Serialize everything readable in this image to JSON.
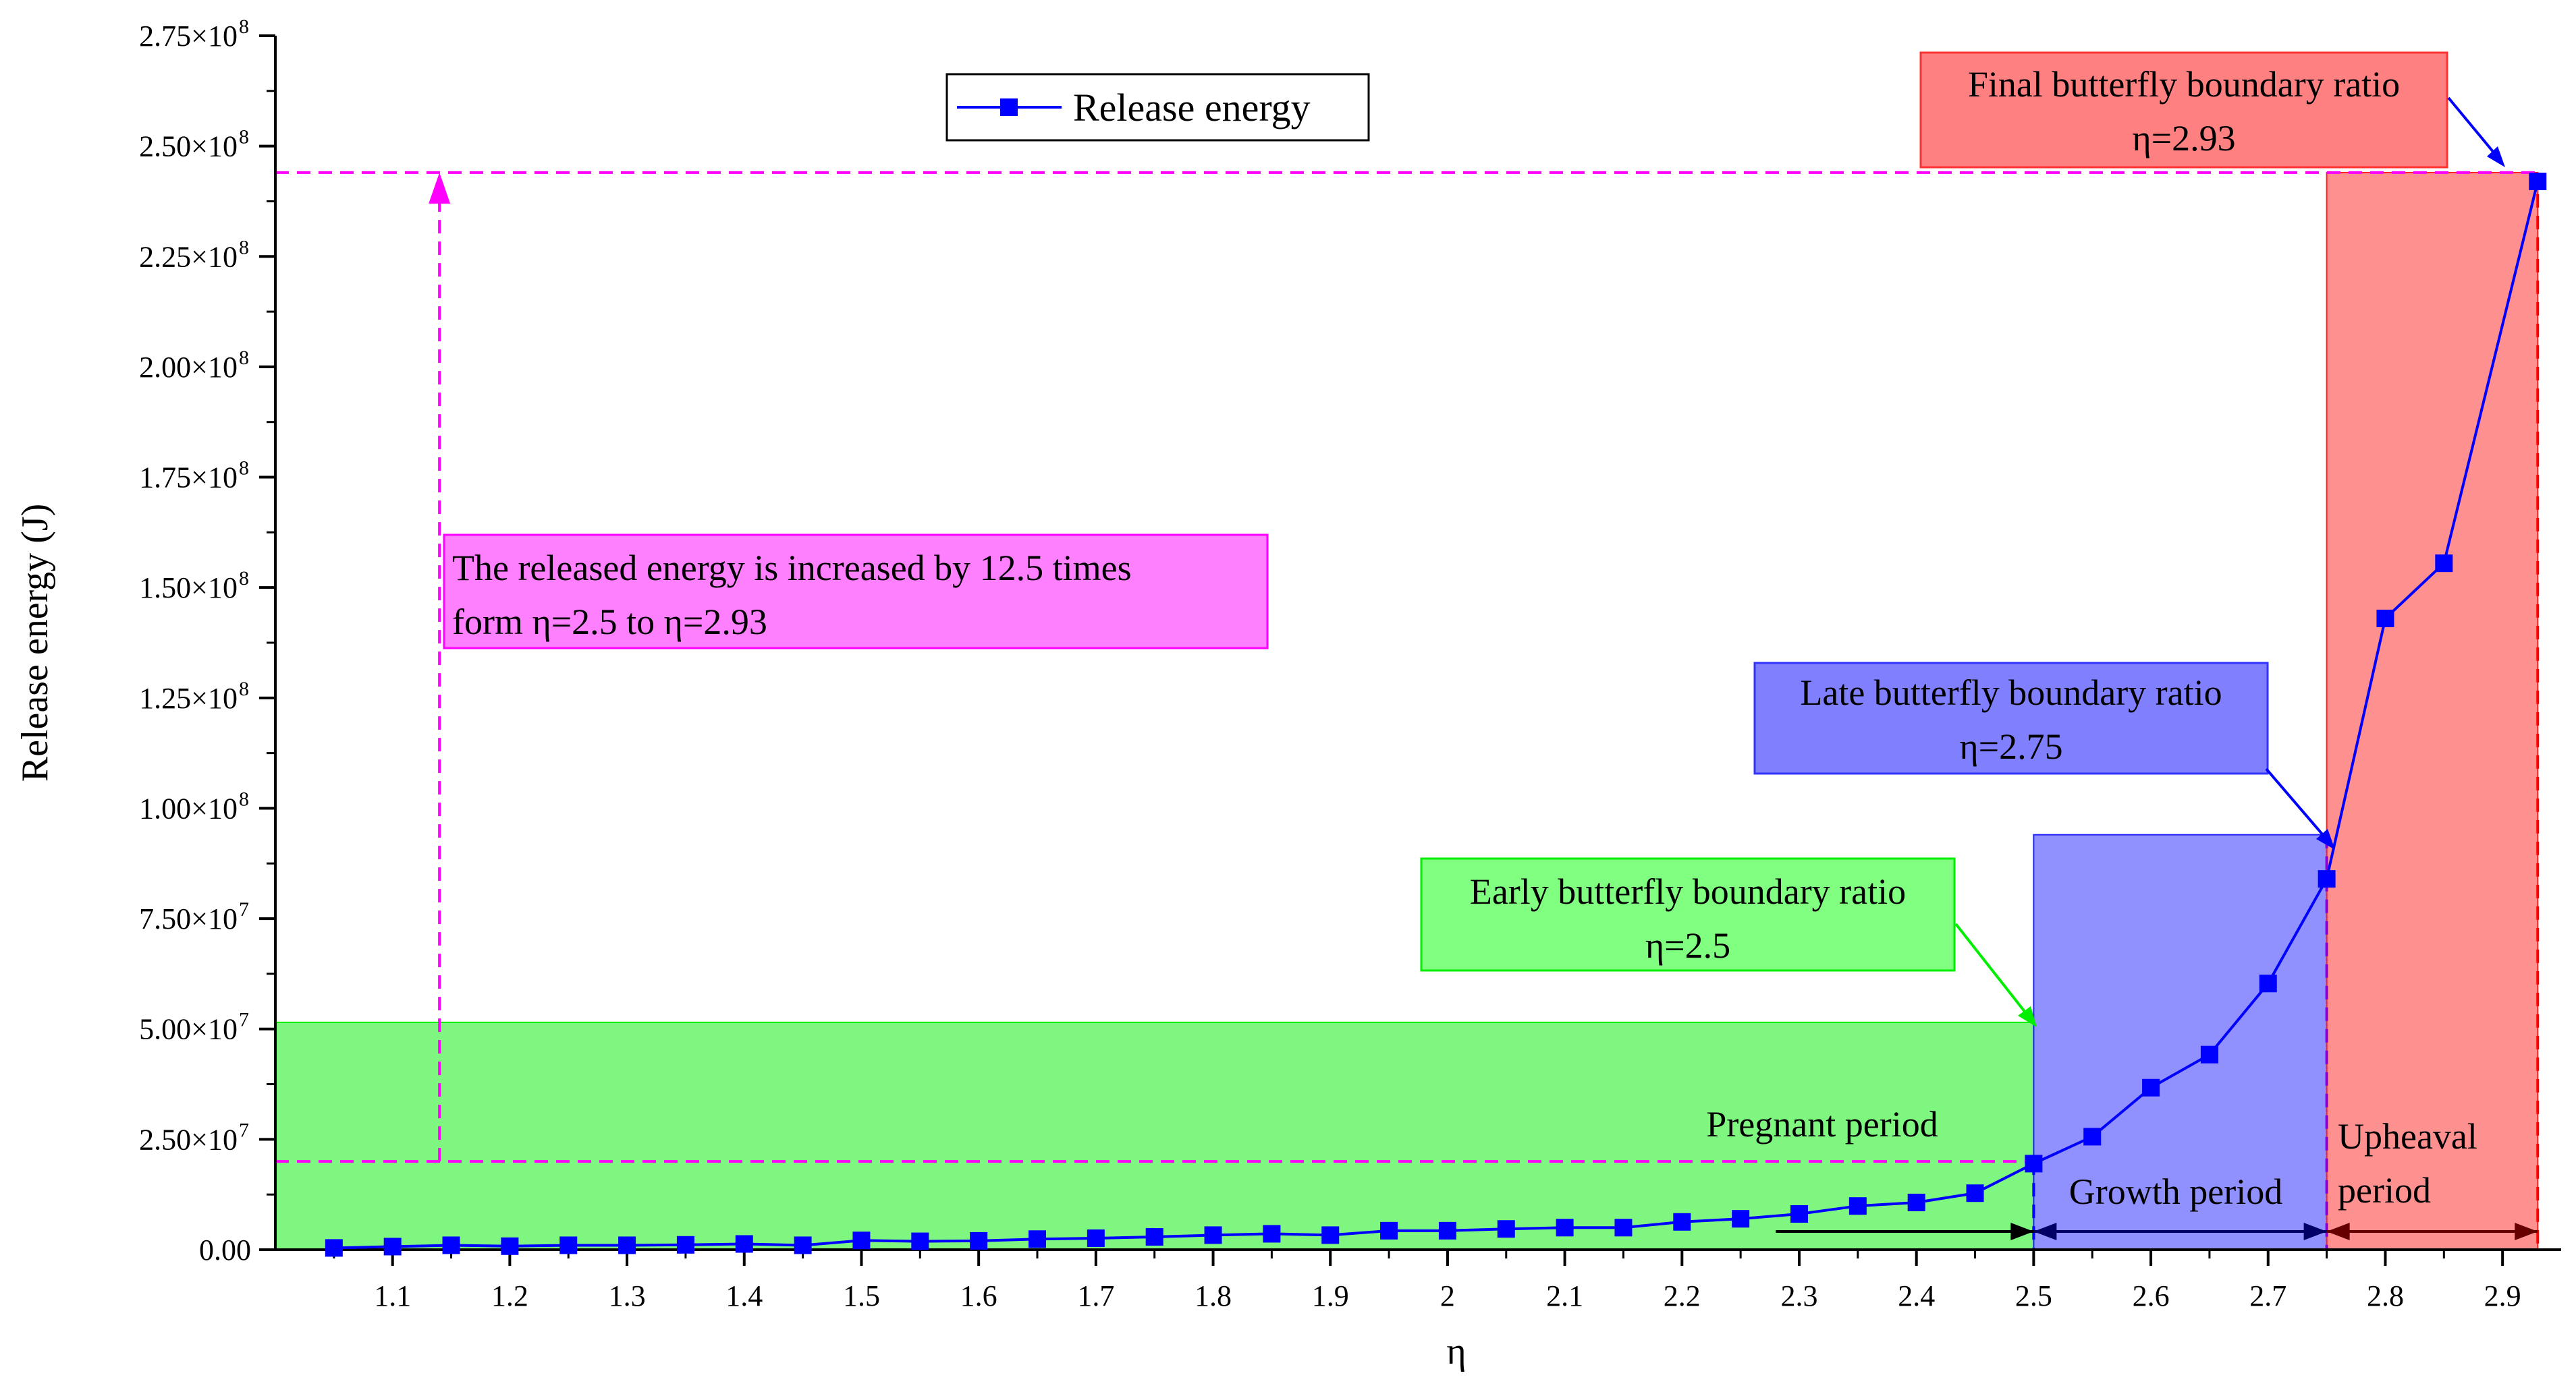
{
  "chart_data": {
    "type": "line",
    "xlabel": "η",
    "ylabel": "Release energy (J)",
    "xlim": [
      1.0,
      2.95
    ],
    "ylim": [
      0,
      275000000
    ],
    "x_ticks": [
      1.1,
      1.2,
      1.3,
      1.4,
      1.5,
      1.6,
      1.7,
      1.8,
      1.9,
      2,
      2.1,
      2.2,
      2.3,
      2.4,
      2.5,
      2.6,
      2.7,
      2.8,
      2.9
    ],
    "x_tick_labels": [
      "1.1",
      "1.2",
      "1.3",
      "1.4",
      "1.5",
      "1.6",
      "1.7",
      "1.8",
      "1.9",
      "2",
      "2.1",
      "2.2",
      "2.3",
      "2.4",
      "2.5",
      "2.6",
      "2.7",
      "2.8",
      "2.9"
    ],
    "y_ticks": [
      0,
      25000000,
      50000000,
      75000000,
      100000000,
      125000000,
      150000000,
      175000000,
      200000000,
      225000000,
      250000000,
      275000000
    ],
    "y_tick_labels": [
      {
        "mantissa": "0.00",
        "exp": ""
      },
      {
        "mantissa": "2.50×10",
        "exp": "7"
      },
      {
        "mantissa": "5.00×10",
        "exp": "7"
      },
      {
        "mantissa": "7.50×10",
        "exp": "7"
      },
      {
        "mantissa": "1.00×10",
        "exp": "8"
      },
      {
        "mantissa": "1.25×10",
        "exp": "8"
      },
      {
        "mantissa": "1.50×10",
        "exp": "8"
      },
      {
        "mantissa": "1.75×10",
        "exp": "8"
      },
      {
        "mantissa": "2.00×10",
        "exp": "8"
      },
      {
        "mantissa": "2.25×10",
        "exp": "8"
      },
      {
        "mantissa": "2.50×10",
        "exp": "8"
      },
      {
        "mantissa": "2.75×10",
        "exp": "8"
      }
    ],
    "series": [
      {
        "name": "Release energy",
        "color": "#0000ff",
        "marker": "square",
        "x": [
          1.05,
          1.1,
          1.15,
          1.2,
          1.25,
          1.3,
          1.35,
          1.4,
          1.45,
          1.5,
          1.55,
          1.6,
          1.65,
          1.7,
          1.75,
          1.8,
          1.85,
          1.9,
          1.95,
          2.0,
          2.05,
          2.1,
          2.15,
          2.2,
          2.25,
          2.3,
          2.35,
          2.4,
          2.45,
          2.5,
          2.55,
          2.6,
          2.65,
          2.7,
          2.75,
          2.8,
          2.85,
          2.93
        ],
        "y": [
          400000,
          700000,
          1000000,
          800000,
          1000000,
          1000000,
          1100000,
          1300000,
          1000000,
          2100000,
          1900000,
          2000000,
          2400000,
          2600000,
          2900000,
          3300000,
          3600000,
          3300000,
          4300000,
          4300000,
          4700000,
          5000000,
          5000000,
          6300000,
          7000000,
          8100000,
          9900000,
          10700000,
          12800000,
          19500000,
          25600000,
          36700000,
          44200000,
          60300000,
          84000000,
          143000000,
          155500000,
          242000000
        ]
      }
    ],
    "legend": {
      "label": "Release energy",
      "position": "top-center"
    },
    "regions": [
      {
        "name": "pregnant",
        "label": "Pregnant period",
        "x_start": 1.0,
        "x_end": 2.5,
        "y_top": 51500000,
        "color": "#00ee00"
      },
      {
        "name": "growth",
        "label": "Growth period",
        "x_start": 2.5,
        "x_end": 2.75,
        "y_top": 94000000,
        "color": "#2222ff"
      },
      {
        "name": "upheaval",
        "label_line1": "Upheaval",
        "label_line2": "period",
        "x_start": 2.75,
        "x_end": 2.93,
        "y_top": 244000000,
        "color": "#ff2222"
      }
    ],
    "annotations": {
      "early": {
        "line1": "Early butterfly boundary ratio",
        "line2": "η=2.5",
        "color": "#00ee00",
        "arrow_color": "#00ee00"
      },
      "late": {
        "line1": "Late butterfly boundary ratio",
        "line2": "η=2.75",
        "color": "#3333ff",
        "arrow_color": "#0000ff"
      },
      "final": {
        "line1": "Final butterfly boundary ratio",
        "line2": "η=2.93",
        "color": "#ff3333",
        "arrow_color": "#0000ff"
      },
      "released": {
        "line1": "The released energy is increased by 12.5 times",
        "line2": "form η=2.5 to η=2.93",
        "color": "#ff44ff"
      }
    },
    "reference_lines": {
      "low_y": 20000000,
      "high_y": 244000000,
      "arrow_x": 1.14,
      "color": "#ff00ff"
    }
  }
}
